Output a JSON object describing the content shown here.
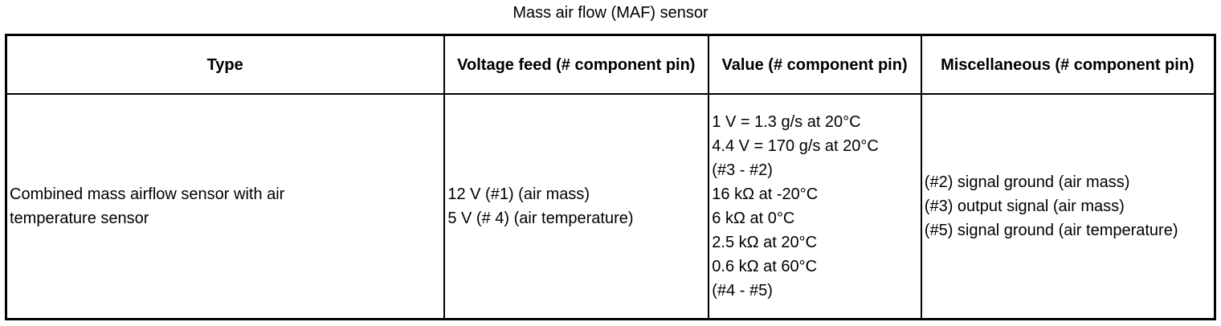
{
  "title": "Mass air flow (MAF) sensor",
  "table": {
    "headers": [
      "Type",
      "Voltage feed (# component pin)",
      "Value (# component pin)",
      "Miscellaneous (# component pin)"
    ],
    "rows": [
      {
        "type": "Combined mass airflow sensor with air temperature sensor",
        "voltage_feed": [
          "12 V (#1) (air mass)",
          "5 V (# 4) (air temperature)"
        ],
        "value": [
          "1 V = 1.3 g/s at 20°C",
          "4.4 V = 170 g/s at 20°C",
          "(#3 - #2)",
          "16 kΩ at -20°C",
          "6 kΩ at 0°C",
          "2.5 kΩ at 20°C",
          "0.6 kΩ at 60°C",
          "(#4 - #5)"
        ],
        "miscellaneous": [
          "(#2) signal ground (air mass)",
          "(#3) output signal (air mass)",
          "(#5) signal ground (air temperature)"
        ]
      }
    ]
  }
}
